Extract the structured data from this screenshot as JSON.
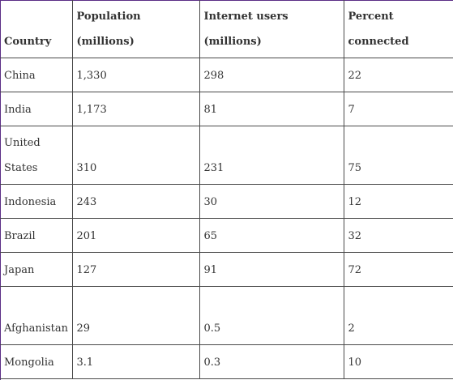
{
  "table": {
    "headers": [
      "Country",
      "Population (millions)",
      "Internet users (millions)",
      "Percent connected"
    ],
    "rows": [
      [
        "China",
        "1,330",
        "298",
        "22"
      ],
      [
        "India",
        "1,173",
        "81",
        "7"
      ],
      [
        "United States",
        "310",
        "231",
        "75"
      ],
      [
        "Indonesia",
        "243",
        "30",
        "12"
      ],
      [
        "Brazil",
        "201",
        "65",
        "32"
      ],
      [
        "Japan",
        "127",
        "91",
        "72"
      ],
      [
        "Afghanistan",
        "29",
        "0.5",
        "2"
      ],
      [
        "Mongolia",
        "3.1",
        "0.3",
        "10"
      ]
    ]
  }
}
